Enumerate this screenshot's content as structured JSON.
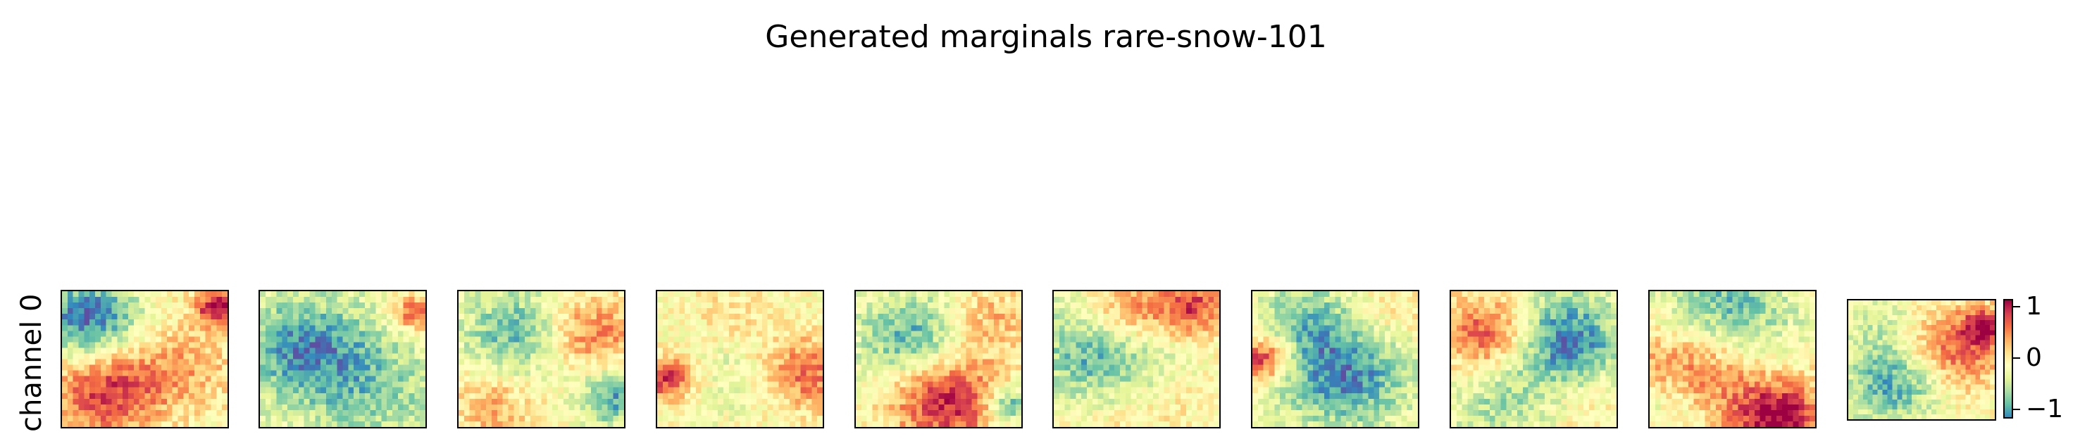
{
  "title": "Generated marginals rare-snow-101",
  "chart_data": {
    "type": "heatmap",
    "title": "Generated marginals rare-snow-101",
    "row_label": "channel 0",
    "num_panels": 10,
    "colormap": "Spectral_r",
    "colorbar": {
      "ticks": [
        1,
        0,
        -1
      ],
      "tick_labels": [
        "1",
        "0",
        "−1"
      ],
      "range": [
        -1.3,
        1.3
      ]
    },
    "panels": [
      {
        "id": 1,
        "seed": 11,
        "blobs": [
          [
            0.15,
            0.2,
            0.22,
            -1.2
          ],
          [
            0.25,
            0.75,
            0.25,
            1.0
          ],
          [
            0.75,
            0.55,
            0.25,
            0.45
          ],
          [
            0.95,
            0.1,
            0.1,
            1.2
          ]
        ]
      },
      {
        "id": 2,
        "seed": 23,
        "blobs": [
          [
            0.25,
            0.4,
            0.3,
            -0.9
          ],
          [
            0.7,
            0.75,
            0.35,
            -0.55
          ],
          [
            0.95,
            0.15,
            0.1,
            0.9
          ]
        ]
      },
      {
        "id": 3,
        "seed": 37,
        "blobs": [
          [
            0.35,
            0.3,
            0.25,
            -0.8
          ],
          [
            0.2,
            0.85,
            0.2,
            0.5
          ],
          [
            0.8,
            0.3,
            0.2,
            0.8
          ],
          [
            0.95,
            0.8,
            0.15,
            -0.9
          ]
        ]
      },
      {
        "id": 4,
        "seed": 41,
        "blobs": [
          [
            0.05,
            0.65,
            0.12,
            1.1
          ],
          [
            0.9,
            0.6,
            0.2,
            0.9
          ],
          [
            0.5,
            0.5,
            0.3,
            -0.3
          ],
          [
            0.45,
            0.2,
            0.2,
            0.35
          ]
        ]
      },
      {
        "id": 5,
        "seed": 53,
        "blobs": [
          [
            0.35,
            0.35,
            0.25,
            -0.9
          ],
          [
            0.55,
            0.8,
            0.25,
            1.2
          ],
          [
            0.8,
            0.2,
            0.2,
            0.5
          ],
          [
            0.95,
            0.85,
            0.1,
            -1.0
          ]
        ]
      },
      {
        "id": 6,
        "seed": 67,
        "blobs": [
          [
            0.3,
            0.45,
            0.3,
            -1.0
          ],
          [
            0.45,
            0.15,
            0.2,
            0.9
          ],
          [
            0.85,
            0.1,
            0.15,
            1.0
          ],
          [
            0.5,
            0.85,
            0.3,
            0.3
          ]
        ]
      },
      {
        "id": 7,
        "seed": 71,
        "blobs": [
          [
            0.05,
            0.5,
            0.12,
            1.2
          ],
          [
            0.55,
            0.6,
            0.3,
            -1.1
          ],
          [
            0.85,
            0.2,
            0.2,
            0.3
          ],
          [
            0.3,
            0.15,
            0.2,
            -0.5
          ]
        ]
      },
      {
        "id": 8,
        "seed": 83,
        "blobs": [
          [
            0.2,
            0.3,
            0.2,
            1.0
          ],
          [
            0.7,
            0.35,
            0.25,
            -1.1
          ],
          [
            0.3,
            0.85,
            0.25,
            -0.5
          ],
          [
            0.75,
            0.85,
            0.2,
            0.2
          ]
        ]
      },
      {
        "id": 9,
        "seed": 97,
        "blobs": [
          [
            0.45,
            0.15,
            0.3,
            -0.9
          ],
          [
            0.25,
            0.6,
            0.3,
            1.0
          ],
          [
            0.8,
            0.95,
            0.2,
            1.3
          ],
          [
            0.1,
            0.85,
            0.2,
            -0.6
          ]
        ]
      },
      {
        "id": 10,
        "seed": 101,
        "blobs": [
          [
            0.3,
            0.7,
            0.25,
            -0.9
          ],
          [
            0.75,
            0.4,
            0.25,
            0.9
          ],
          [
            0.95,
            0.2,
            0.1,
            1.0
          ],
          [
            0.2,
            0.15,
            0.2,
            -0.3
          ]
        ]
      }
    ]
  }
}
